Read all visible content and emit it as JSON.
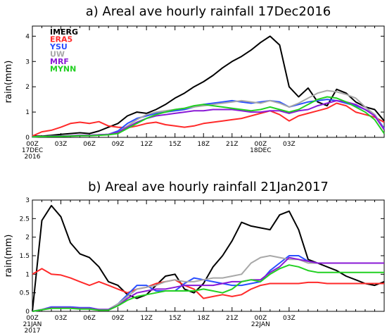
{
  "chart_data": [
    {
      "type": "line",
      "title": "a) Areal ave hourly rainfall 17Dec2016",
      "xlabel": "",
      "ylabel": "rain(mm)",
      "xlim": [
        0,
        37
      ],
      "ylim": [
        0,
        4.4
      ],
      "yticks": [
        0,
        1,
        2,
        3,
        4
      ],
      "xticks": [
        {
          "x": 0,
          "lines": [
            "00Z",
            "17DEC",
            "2016"
          ]
        },
        {
          "x": 3,
          "lines": [
            "03Z"
          ]
        },
        {
          "x": 6,
          "lines": [
            "06Z"
          ]
        },
        {
          "x": 9,
          "lines": [
            "09Z"
          ]
        },
        {
          "x": 12,
          "lines": [
            "12Z"
          ]
        },
        {
          "x": 15,
          "lines": [
            "15Z"
          ]
        },
        {
          "x": 18,
          "lines": [
            "18Z"
          ]
        },
        {
          "x": 21,
          "lines": [
            "21Z"
          ]
        },
        {
          "x": 24,
          "lines": [
            "00Z",
            "18DEC"
          ]
        },
        {
          "x": 27,
          "lines": [
            "03Z"
          ]
        }
      ],
      "grid": false,
      "legend_position": "top-left",
      "series": [
        {
          "name": "IMERG",
          "color": "#000000",
          "x": [
            0,
            1,
            2,
            3,
            4,
            5,
            6,
            7,
            8,
            9,
            10,
            11,
            12,
            13,
            14,
            15,
            16,
            17,
            18,
            19,
            20,
            21,
            22,
            23,
            24,
            25,
            26,
            27,
            28,
            29,
            30,
            31,
            32,
            33,
            34,
            35,
            36,
            37
          ],
          "values": [
            0.05,
            0.05,
            0.08,
            0.12,
            0.15,
            0.18,
            0.15,
            0.25,
            0.4,
            0.55,
            0.85,
            1.0,
            0.95,
            1.1,
            1.3,
            1.55,
            1.75,
            2.0,
            2.2,
            2.45,
            2.75,
            3.0,
            3.2,
            3.45,
            3.75,
            4.0,
            3.65,
            2.0,
            1.6,
            1.95,
            1.4,
            1.25,
            1.9,
            1.75,
            1.4,
            1.2,
            1.1,
            0.65
          ]
        },
        {
          "name": "ERA5",
          "color": "#ff2a2a",
          "x": [
            0,
            1,
            2,
            3,
            4,
            5,
            6,
            7,
            8,
            9,
            10,
            11,
            12,
            13,
            14,
            15,
            16,
            17,
            18,
            19,
            20,
            21,
            22,
            23,
            24,
            25,
            26,
            27,
            28,
            29,
            30,
            31,
            32,
            33,
            34,
            35,
            36,
            37
          ],
          "values": [
            0.05,
            0.22,
            0.28,
            0.4,
            0.55,
            0.6,
            0.55,
            0.62,
            0.45,
            0.4,
            0.38,
            0.45,
            0.55,
            0.6,
            0.5,
            0.45,
            0.4,
            0.45,
            0.55,
            0.6,
            0.65,
            0.7,
            0.75,
            0.85,
            0.95,
            1.05,
            0.9,
            0.65,
            0.85,
            0.95,
            1.05,
            1.15,
            1.35,
            1.25,
            1.0,
            0.9,
            0.8,
            0.6
          ]
        },
        {
          "name": "YSU",
          "color": "#2a4fff",
          "x": [
            0,
            1,
            2,
            3,
            4,
            5,
            6,
            7,
            8,
            9,
            10,
            11,
            12,
            13,
            14,
            15,
            16,
            17,
            18,
            19,
            20,
            21,
            22,
            23,
            24,
            25,
            26,
            27,
            28,
            29,
            30,
            31,
            32,
            33,
            34,
            35,
            36,
            37
          ],
          "values": [
            0.02,
            0.03,
            0.05,
            0.05,
            0.06,
            0.08,
            0.08,
            0.1,
            0.12,
            0.25,
            0.55,
            0.75,
            0.85,
            0.95,
            1.0,
            1.05,
            1.1,
            1.2,
            1.3,
            1.35,
            1.4,
            1.45,
            1.4,
            1.35,
            1.4,
            1.45,
            1.4,
            1.2,
            1.3,
            1.4,
            1.45,
            1.5,
            1.45,
            1.35,
            1.25,
            1.1,
            0.9,
            0.35
          ]
        },
        {
          "name": "UW",
          "color": "#a8a8a8",
          "x": [
            0,
            1,
            2,
            3,
            4,
            5,
            6,
            7,
            8,
            9,
            10,
            11,
            12,
            13,
            14,
            15,
            16,
            17,
            18,
            19,
            20,
            21,
            22,
            23,
            24,
            25,
            26,
            27,
            28,
            29,
            30,
            31,
            32,
            33,
            34,
            35,
            36,
            37
          ],
          "values": [
            0.02,
            0.03,
            0.05,
            0.05,
            0.06,
            0.08,
            0.08,
            0.1,
            0.12,
            0.2,
            0.45,
            0.7,
            0.9,
            1.0,
            1.05,
            1.1,
            1.15,
            1.2,
            1.25,
            1.3,
            1.35,
            1.4,
            1.45,
            1.4,
            1.35,
            1.45,
            1.35,
            1.2,
            1.35,
            1.55,
            1.75,
            1.85,
            1.8,
            1.7,
            1.55,
            1.2,
            0.9,
            0.3
          ]
        },
        {
          "name": "MRF",
          "color": "#8a1ad6",
          "x": [
            0,
            1,
            2,
            3,
            4,
            5,
            6,
            7,
            8,
            9,
            10,
            11,
            12,
            13,
            14,
            15,
            16,
            17,
            18,
            19,
            20,
            21,
            22,
            23,
            24,
            25,
            26,
            27,
            28,
            29,
            30,
            31,
            32,
            33,
            34,
            35,
            36,
            37
          ],
          "values": [
            0.02,
            0.03,
            0.05,
            0.05,
            0.06,
            0.08,
            0.08,
            0.1,
            0.12,
            0.2,
            0.4,
            0.6,
            0.75,
            0.85,
            0.9,
            0.95,
            1.0,
            1.05,
            1.05,
            1.1,
            1.1,
            1.1,
            1.05,
            1.0,
            1.0,
            1.05,
            1.05,
            0.95,
            1.05,
            1.1,
            1.25,
            1.35,
            1.45,
            1.4,
            1.3,
            1.1,
            0.85,
            0.3
          ]
        },
        {
          "name": "MYNN",
          "color": "#22d022",
          "x": [
            0,
            1,
            2,
            3,
            4,
            5,
            6,
            7,
            8,
            9,
            10,
            11,
            12,
            13,
            14,
            15,
            16,
            17,
            18,
            19,
            20,
            21,
            22,
            23,
            24,
            25,
            26,
            27,
            28,
            29,
            30,
            31,
            32,
            33,
            34,
            35,
            36,
            37
          ],
          "values": [
            0.02,
            0.03,
            0.04,
            0.04,
            0.05,
            0.06,
            0.06,
            0.08,
            0.1,
            0.15,
            0.35,
            0.55,
            0.75,
            0.9,
            1.0,
            1.1,
            1.15,
            1.25,
            1.3,
            1.25,
            1.2,
            1.15,
            1.1,
            1.05,
            1.1,
            1.2,
            1.1,
            1.0,
            1.1,
            1.3,
            1.5,
            1.6,
            1.55,
            1.4,
            1.2,
            1.0,
            0.7,
            0.15
          ]
        }
      ]
    },
    {
      "type": "line",
      "title": "b) Areal ave hourly rainfall 21Jan2017",
      "xlabel": "",
      "ylabel": "rain(mm)",
      "xlim": [
        0,
        37
      ],
      "ylim": [
        0,
        3
      ],
      "yticks": [
        0,
        0.5,
        1,
        1.5,
        2,
        2.5,
        3
      ],
      "xticks": [
        {
          "x": 0,
          "lines": [
            "00Z",
            "21JAN",
            "2017"
          ]
        },
        {
          "x": 3,
          "lines": [
            "03Z"
          ]
        },
        {
          "x": 6,
          "lines": [
            "06Z"
          ]
        },
        {
          "x": 9,
          "lines": [
            "09Z"
          ]
        },
        {
          "x": 12,
          "lines": [
            "12Z"
          ]
        },
        {
          "x": 15,
          "lines": [
            "15Z"
          ]
        },
        {
          "x": 18,
          "lines": [
            "18Z"
          ]
        },
        {
          "x": 21,
          "lines": [
            "21Z"
          ]
        },
        {
          "x": 24,
          "lines": [
            "00Z",
            "22JAN"
          ]
        },
        {
          "x": 27,
          "lines": [
            "03Z"
          ]
        }
      ],
      "grid": false,
      "series": [
        {
          "name": "IMERG",
          "color": "#000000",
          "x": [
            0,
            1,
            2,
            3,
            4,
            5,
            6,
            7,
            8,
            9,
            10,
            11,
            12,
            13,
            14,
            15,
            16,
            17,
            18,
            19,
            20,
            21,
            22,
            23,
            24,
            25,
            26,
            27,
            28,
            29,
            30,
            31,
            32,
            33,
            34,
            35,
            36,
            37
          ],
          "values": [
            0.0,
            2.45,
            2.85,
            2.55,
            1.85,
            1.55,
            1.45,
            1.2,
            0.8,
            0.7,
            0.45,
            0.35,
            0.45,
            0.7,
            0.95,
            1.0,
            0.6,
            0.5,
            0.75,
            1.2,
            1.5,
            1.9,
            2.4,
            2.3,
            2.25,
            2.2,
            2.6,
            2.7,
            2.2,
            1.4,
            1.3,
            1.2,
            1.1,
            0.95,
            0.85,
            0.75,
            0.7,
            0.8
          ]
        },
        {
          "name": "ERA5",
          "color": "#ff2a2a",
          "x": [
            0,
            1,
            2,
            3,
            4,
            5,
            6,
            7,
            8,
            9,
            10,
            11,
            12,
            13,
            14,
            15,
            16,
            17,
            18,
            19,
            20,
            21,
            22,
            23,
            24,
            25,
            26,
            27,
            28,
            29,
            30,
            31,
            32,
            33,
            34,
            35,
            36,
            37
          ],
          "values": [
            1.0,
            1.15,
            1.0,
            0.98,
            0.9,
            0.8,
            0.7,
            0.8,
            0.7,
            0.6,
            0.5,
            0.6,
            0.65,
            0.75,
            0.8,
            0.85,
            0.7,
            0.6,
            0.35,
            0.4,
            0.45,
            0.4,
            0.45,
            0.6,
            0.7,
            0.75,
            0.75,
            0.75,
            0.75,
            0.78,
            0.78,
            0.75,
            0.75,
            0.75,
            0.75,
            0.75,
            0.75,
            0.75
          ]
        },
        {
          "name": "YSU",
          "color": "#2a4fff",
          "x": [
            0,
            1,
            2,
            3,
            4,
            5,
            6,
            7,
            8,
            9,
            10,
            11,
            12,
            13,
            14,
            15,
            16,
            17,
            18,
            19,
            20,
            21,
            22,
            23,
            24,
            25,
            26,
            27,
            28,
            29,
            30,
            31,
            32,
            33,
            34,
            35,
            36,
            37
          ],
          "values": [
            0.0,
            0.05,
            0.12,
            0.12,
            0.12,
            0.1,
            0.1,
            0.05,
            0.05,
            0.2,
            0.45,
            0.7,
            0.7,
            0.55,
            0.55,
            0.55,
            0.75,
            0.9,
            0.85,
            0.8,
            0.75,
            0.7,
            0.7,
            0.75,
            0.8,
            1.1,
            1.3,
            1.5,
            1.5,
            1.35,
            1.3,
            1.3,
            1.3,
            1.3,
            1.3,
            1.3,
            1.3,
            1.3
          ]
        },
        {
          "name": "UW",
          "color": "#a8a8a8",
          "x": [
            0,
            1,
            2,
            3,
            4,
            5,
            6,
            7,
            8,
            9,
            10,
            11,
            12,
            13,
            14,
            15,
            16,
            17,
            18,
            19,
            20,
            21,
            22,
            23,
            24,
            25,
            26,
            27,
            28,
            29,
            30,
            31,
            32,
            33,
            34,
            35,
            36,
            37
          ],
          "values": [
            0.0,
            0.05,
            0.1,
            0.1,
            0.1,
            0.08,
            0.08,
            0.05,
            0.05,
            0.2,
            0.4,
            0.6,
            0.65,
            0.7,
            0.8,
            0.85,
            0.8,
            0.8,
            0.85,
            0.9,
            0.9,
            0.95,
            1.0,
            1.3,
            1.45,
            1.5,
            1.45,
            1.4,
            1.4,
            1.3,
            1.3,
            1.3,
            1.3,
            1.3,
            1.3,
            1.3,
            1.3,
            1.3
          ]
        },
        {
          "name": "MRF",
          "color": "#8a1ad6",
          "x": [
            0,
            1,
            2,
            3,
            4,
            5,
            6,
            7,
            8,
            9,
            10,
            11,
            12,
            13,
            14,
            15,
            16,
            17,
            18,
            19,
            20,
            21,
            22,
            23,
            24,
            25,
            26,
            27,
            28,
            29,
            30,
            31,
            32,
            33,
            34,
            35,
            36,
            37
          ],
          "values": [
            0.0,
            0.04,
            0.1,
            0.1,
            0.1,
            0.08,
            0.08,
            0.05,
            0.05,
            0.15,
            0.35,
            0.5,
            0.55,
            0.6,
            0.6,
            0.65,
            0.7,
            0.7,
            0.7,
            0.7,
            0.75,
            0.8,
            0.8,
            0.85,
            0.85,
            1.05,
            1.2,
            1.45,
            1.4,
            1.35,
            1.3,
            1.3,
            1.3,
            1.3,
            1.3,
            1.3,
            1.3,
            1.3
          ]
        },
        {
          "name": "MYNN",
          "color": "#22d022",
          "x": [
            0,
            1,
            2,
            3,
            4,
            5,
            6,
            7,
            8,
            9,
            10,
            11,
            12,
            13,
            14,
            15,
            16,
            17,
            18,
            19,
            20,
            21,
            22,
            23,
            24,
            25,
            26,
            27,
            28,
            29,
            30,
            31,
            32,
            33,
            34,
            35,
            36,
            37
          ],
          "values": [
            0.0,
            0.04,
            0.08,
            0.08,
            0.08,
            0.06,
            0.06,
            0.03,
            0.03,
            0.15,
            0.3,
            0.4,
            0.45,
            0.5,
            0.55,
            0.55,
            0.55,
            0.55,
            0.6,
            0.55,
            0.5,
            0.6,
            0.8,
            0.85,
            0.8,
            1.0,
            1.15,
            1.25,
            1.2,
            1.1,
            1.05,
            1.05,
            1.05,
            1.05,
            1.05,
            1.05,
            1.05,
            1.05
          ]
        }
      ]
    }
  ]
}
